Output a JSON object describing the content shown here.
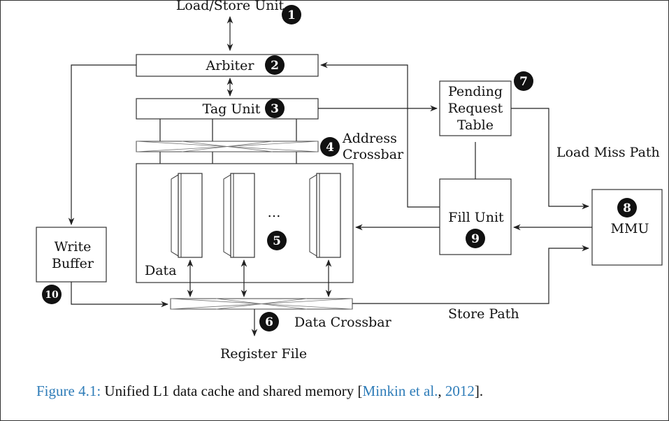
{
  "labels": {
    "load_store_unit": "Load/Store Unit",
    "arbiter": "Arbiter",
    "tag_unit": "Tag Unit",
    "address_crossbar_1": "Address",
    "address_crossbar_2": "Crossbar",
    "pending_1": "Pending",
    "pending_2": "Request",
    "pending_3": "Table",
    "load_miss_path": "Load Miss Path",
    "mmu": "MMU",
    "fill_unit": "Fill Unit",
    "write_buffer_1": "Write",
    "write_buffer_2": "Buffer",
    "data": "Data",
    "ellipsis": "…",
    "data_crossbar": "Data Crossbar",
    "store_path": "Store Path",
    "register_file": "Register File"
  },
  "badges": [
    "1",
    "2",
    "3",
    "4",
    "5",
    "6",
    "7",
    "8",
    "9",
    "10"
  ],
  "caption": {
    "prefix": "Figure 4.1:",
    "text": " Unified L1 data cache and shared memory [",
    "cite_author": "Minkin et al.",
    "comma": ", ",
    "cite_year": "2012",
    "suffix": "]."
  },
  "colors": {
    "link": "#2e7cb8",
    "badge": "#111111"
  }
}
